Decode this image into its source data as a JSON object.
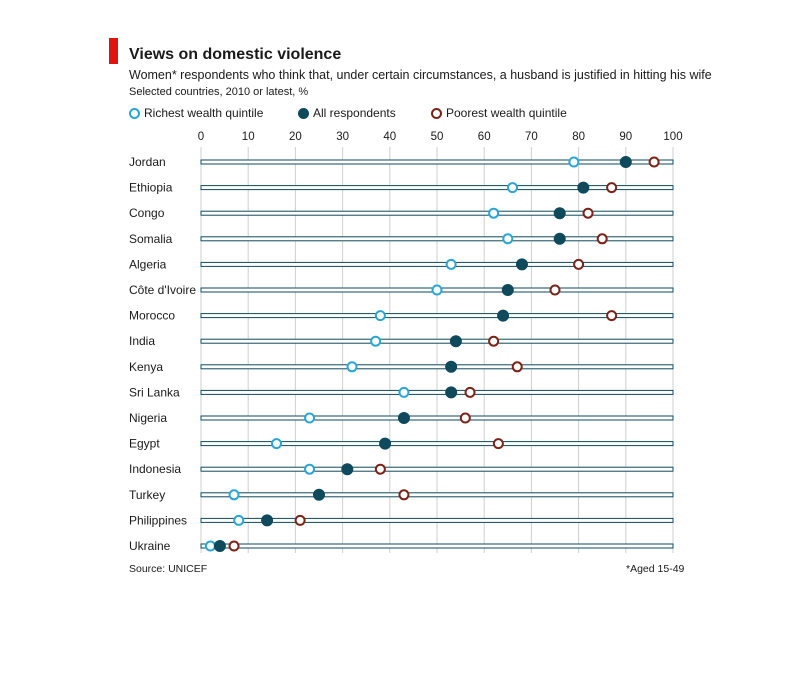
{
  "header": {
    "title": "Views on domestic violence",
    "subtitle": "Women* respondents who think that, under certain circumstances, a husband is justified in hitting his wife",
    "subtitle2": "Selected countries, 2010 or latest, %"
  },
  "legend": {
    "richest": "Richest wealth quintile",
    "all": "All respondents",
    "poorest": "Poorest wealth quintile"
  },
  "footer": {
    "source": "Source: UNICEF",
    "note": "*Aged 15-49"
  },
  "colors": {
    "richest": "#2aa6d4",
    "all": "#0e4a5c",
    "poorest": "#7b2316",
    "accent": "#e3120b",
    "bar": "#0e4a5c",
    "grid": "#cfcfcf"
  },
  "chart_data": {
    "type": "scatter",
    "title": "Views on domestic violence",
    "xlim": [
      0,
      100
    ],
    "xticks": [
      "0",
      "10",
      "20",
      "30",
      "40",
      "50",
      "60",
      "70",
      "80",
      "90",
      "100"
    ],
    "grid": true,
    "legend_position": "top",
    "categories": [
      "Jordan",
      "Ethiopia",
      "Congo",
      "Somalia",
      "Algeria",
      "Côte d'Ivoire",
      "Morocco",
      "India",
      "Kenya",
      "Sri Lanka",
      "Nigeria",
      "Egypt",
      "Indonesia",
      "Turkey",
      "Philippines",
      "Ukraine"
    ],
    "series": [
      {
        "name": "Richest wealth quintile",
        "values": [
          79,
          66,
          62,
          65,
          53,
          50,
          38,
          37,
          32,
          43,
          23,
          16,
          23,
          7,
          8,
          2
        ]
      },
      {
        "name": "All respondents",
        "values": [
          90,
          81,
          76,
          76,
          68,
          65,
          64,
          54,
          53,
          53,
          43,
          39,
          31,
          25,
          14,
          4
        ]
      },
      {
        "name": "Poorest wealth quintile",
        "values": [
          96,
          87,
          82,
          85,
          80,
          75,
          87,
          62,
          67,
          57,
          56,
          63,
          38,
          43,
          21,
          7
        ]
      }
    ]
  }
}
